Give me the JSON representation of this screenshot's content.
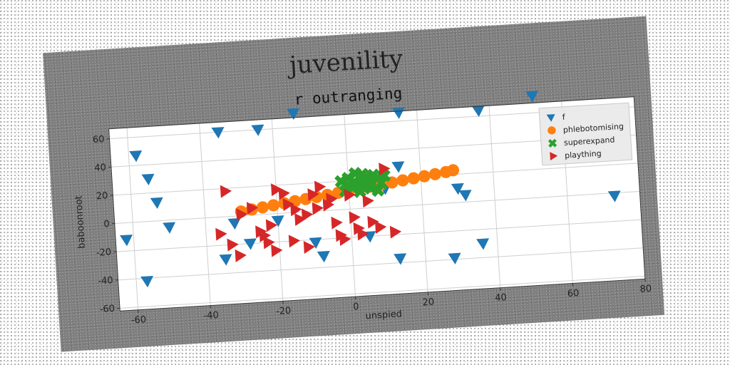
{
  "chart_data": {
    "type": "scatter",
    "suptitle": "juvenility",
    "title": "r outranging",
    "xlabel": "unspied",
    "ylabel": "baboonroot",
    "xlim": [
      -65,
      80
    ],
    "ylim": [
      -62,
      67
    ],
    "xticks": [
      -60,
      -40,
      -20,
      0,
      20,
      40,
      60,
      80
    ],
    "yticks": [
      -60,
      -40,
      -20,
      0,
      20,
      40,
      60
    ],
    "grid": true,
    "legend_position": "top-right",
    "series": [
      {
        "name": "f",
        "marker": "triangle-down",
        "color": "#1f77b4",
        "points": [
          [
            -58,
            47
          ],
          [
            -55,
            30
          ],
          [
            -53,
            13
          ],
          [
            -50,
            -5
          ],
          [
            -62,
            -12
          ],
          [
            -57,
            -42
          ],
          [
            -35,
            60
          ],
          [
            -24,
            60
          ],
          [
            -14,
            70
          ],
          [
            -32,
            -5
          ],
          [
            -28,
            -20
          ],
          [
            -35,
            -30
          ],
          [
            -10,
            -22
          ],
          [
            -8,
            -32
          ],
          [
            15,
            66
          ],
          [
            14,
            28
          ],
          [
            10,
            13
          ],
          [
            5,
            -20
          ],
          [
            13,
            -37
          ],
          [
            28,
            -39
          ],
          [
            30,
            10
          ],
          [
            32,
            5
          ],
          [
            36,
            -30
          ],
          [
            37,
            64
          ],
          [
            52,
            72
          ],
          [
            73,
            -2
          ],
          [
            -20,
            -5
          ]
        ]
      },
      {
        "name": "phlebotomising",
        "marker": "circle",
        "color": "#ff7f0e",
        "points": [
          [
            -30,
            3
          ],
          [
            -27,
            4
          ],
          [
            -24,
            5
          ],
          [
            -21,
            6
          ],
          [
            -18,
            7
          ],
          [
            -15,
            8
          ],
          [
            -12,
            9
          ],
          [
            -9,
            10
          ],
          [
            -6,
            11
          ],
          [
            -3,
            12
          ],
          [
            0,
            13
          ],
          [
            3,
            14
          ],
          [
            6,
            15
          ],
          [
            9,
            16
          ],
          [
            12,
            17
          ],
          [
            15,
            18
          ],
          [
            18,
            19
          ],
          [
            21,
            20
          ],
          [
            24,
            21
          ],
          [
            27,
            22
          ],
          [
            29,
            23
          ]
        ]
      },
      {
        "name": "superexpand",
        "marker": "x",
        "color": "#2ca02c",
        "points": [
          [
            -2,
            20
          ],
          [
            0,
            22
          ],
          [
            2,
            18
          ],
          [
            4,
            24
          ],
          [
            6,
            19
          ],
          [
            8,
            21
          ],
          [
            1,
            15
          ],
          [
            3,
            12
          ],
          [
            5,
            16
          ],
          [
            7,
            23
          ],
          [
            -1,
            13
          ],
          [
            9,
            17
          ],
          [
            10,
            22
          ],
          [
            4,
            20
          ],
          [
            6,
            14
          ],
          [
            2,
            25
          ],
          [
            0,
            17
          ],
          [
            8,
            12
          ],
          [
            5,
            22
          ],
          [
            3,
            18
          ]
        ]
      },
      {
        "name": "plaything",
        "marker": "triangle-right",
        "color": "#d62728",
        "points": [
          [
            -34,
            18
          ],
          [
            -30,
            1
          ],
          [
            -36,
            -12
          ],
          [
            -33,
            -20
          ],
          [
            -31,
            -28
          ],
          [
            -27,
            5
          ],
          [
            -25,
            -12
          ],
          [
            -23,
            -20
          ],
          [
            -22,
            -8
          ],
          [
            -20,
            17
          ],
          [
            -18,
            14
          ],
          [
            -17,
            6
          ],
          [
            -16,
            -20
          ],
          [
            -15,
            2
          ],
          [
            -14,
            -5
          ],
          [
            -12,
            -25
          ],
          [
            -10,
            12
          ],
          [
            -9,
            2
          ],
          [
            -6,
            4
          ],
          [
            -5,
            8
          ],
          [
            -4,
            -9
          ],
          [
            -3,
            -18
          ],
          [
            -2,
            -21
          ],
          [
            0,
            10
          ],
          [
            1,
            -6
          ],
          [
            2,
            -14
          ],
          [
            3,
            -18
          ],
          [
            5,
            5
          ],
          [
            6,
            -10
          ],
          [
            8,
            -14
          ],
          [
            10,
            27
          ],
          [
            12,
            -18
          ],
          [
            -8,
            17
          ],
          [
            -21,
            -26
          ],
          [
            -24,
            -15
          ],
          [
            -12,
            -2
          ]
        ]
      }
    ]
  }
}
